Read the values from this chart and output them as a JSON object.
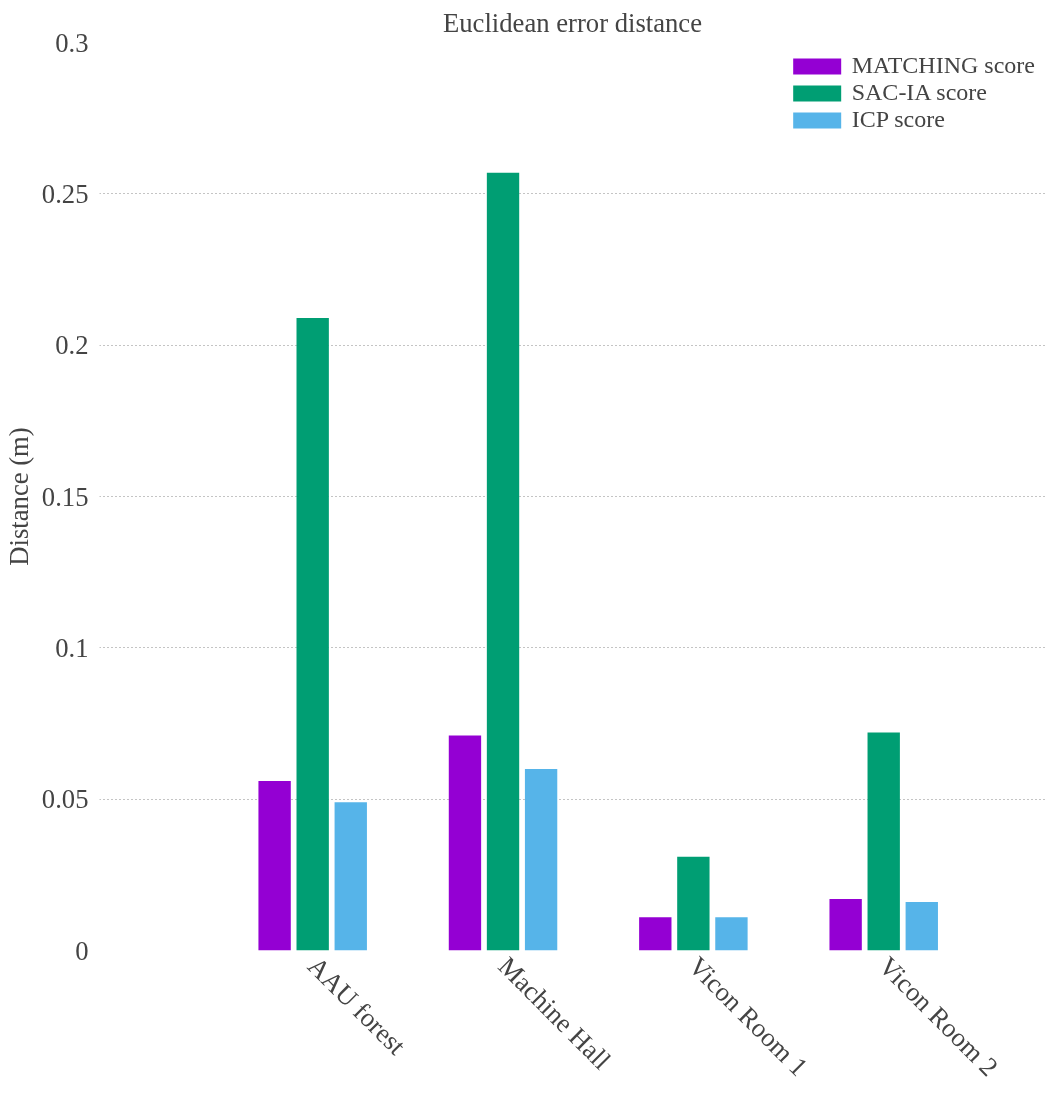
{
  "chart_data": {
    "type": "bar",
    "title": "Euclidean error distance",
    "ylabel": "Distance (m)",
    "categories": [
      "AAU forest",
      "Machine Hall",
      "Vicon Room 1",
      "Vicon Room 2"
    ],
    "series": [
      {
        "name": "MATCHING score",
        "color": "#9400d3",
        "values": [
          0.056,
          0.071,
          0.011,
          0.017
        ]
      },
      {
        "name": "SAC-IA score",
        "color": "#009e73",
        "values": [
          0.209,
          0.257,
          0.031,
          0.072
        ]
      },
      {
        "name": "ICP score",
        "color": "#56b4e9",
        "values": [
          0.049,
          0.06,
          0.011,
          0.016
        ]
      }
    ],
    "ylim": [
      0,
      0.3
    ],
    "yticks": [
      0,
      0.05,
      0.1,
      0.15,
      0.2,
      0.25,
      0.3
    ],
    "grid": "y",
    "legend": "top right"
  }
}
